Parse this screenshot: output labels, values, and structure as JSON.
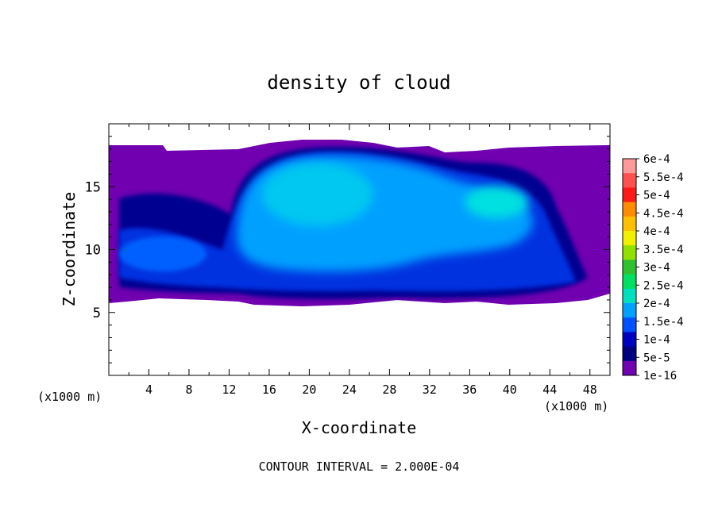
{
  "chart_data": {
    "type": "heatmap",
    "title": "density of cloud",
    "xlabel": "X-coordinate",
    "ylabel": "Z-coordinate",
    "x_unit_left": "(x1000 m)",
    "x_unit_right": "(x1000 m)",
    "xlim": [
      0,
      50
    ],
    "ylim": [
      0,
      20
    ],
    "x_ticks": [
      4,
      8,
      12,
      16,
      20,
      24,
      28,
      32,
      36,
      40,
      44,
      48
    ],
    "x_tick_labels": [
      "4",
      "8",
      "12",
      "16",
      "20",
      "24",
      "28",
      "32",
      "36",
      "40",
      "44",
      "48"
    ],
    "y_ticks": [
      5,
      10,
      15
    ],
    "y_tick_labels": [
      "5",
      "10",
      "15"
    ],
    "footer": "CONTOUR INTERVAL = 2.000E-04",
    "colorbar": {
      "labels": [
        "6e-4",
        "5.5e-4",
        "5e-4",
        "4.5e-4",
        "4e-4",
        "3.5e-4",
        "3e-4",
        "2.5e-4",
        "2e-4",
        "1.5e-4",
        "1e-4",
        "5e-5",
        "1e-16"
      ],
      "colors": [
        "#ff9a9a",
        "#ff5050",
        "#ff1a1a",
        "#ff8c00",
        "#ffc000",
        "#f0f000",
        "#90e000",
        "#30c030",
        "#00e060",
        "#00e0c0",
        "#00a0ff",
        "#0050ff",
        "#0000c0",
        "#000080",
        "#7000b0"
      ]
    },
    "field": {
      "background_level": "1e-16",
      "cloud_base_z": 6.2,
      "cloud_top_z": 18.2,
      "core_center_x": 22,
      "core_center_z": 13,
      "core_level": "1.5e-4",
      "secondary_center_x": 40,
      "secondary_center_z": 14.5,
      "secondary_level": "2e-4"
    }
  }
}
